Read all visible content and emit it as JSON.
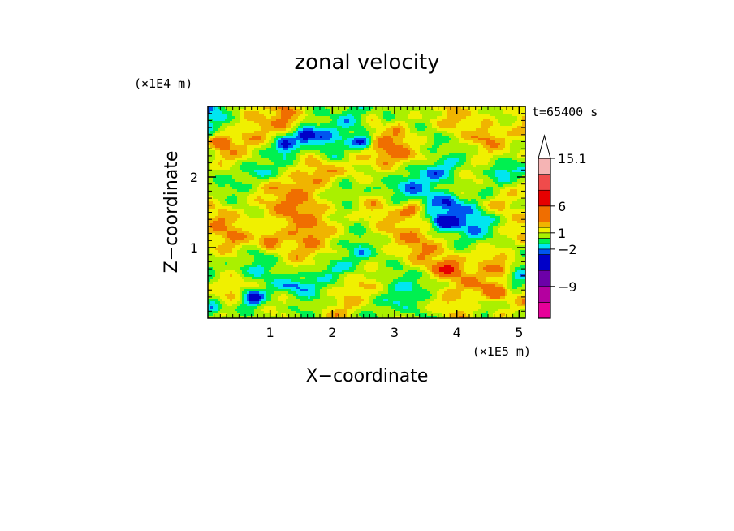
{
  "chart_data": {
    "type": "heatmap",
    "title": "zonal velocity",
    "xlabel": "X−coordinate",
    "ylabel": "Z−coordinate",
    "x_unit": "(×1E5 m)",
    "y_unit": "(×1E4 m)",
    "time_label": "t=65400 s",
    "xlim": [
      0,
      5.1
    ],
    "ylim": [
      0,
      3.0
    ],
    "x_ticks": [
      1,
      2,
      3,
      4,
      5
    ],
    "y_ticks": [
      1,
      2
    ],
    "colorbar": {
      "levels": [
        -15,
        -12,
        -9,
        -6,
        -3,
        -2,
        -1,
        0,
        1,
        2,
        3,
        6,
        9,
        12,
        15.1
      ],
      "labels": [
        "15.1",
        "6",
        "1",
        "−2",
        "−9"
      ],
      "colors": [
        "#e60099",
        "#b4009f",
        "#6c00a8",
        "#0000c8",
        "#0055f0",
        "#00e6f0",
        "#00f050",
        "#aaf000",
        "#f0f000",
        "#f0b400",
        "#f06e00",
        "#e60000",
        "#f04b4b",
        "#f5b4b4"
      ]
    },
    "z_grid": {
      "nx": 26,
      "nz": 14,
      "values": [
        [
          -2.5,
          -1.5,
          0.5,
          1.5,
          1.5,
          2.5,
          3.5,
          1.5,
          0.5,
          0.5,
          0.5,
          -0.5,
          -0.5,
          0.5,
          -0.5,
          0.5,
          0.5,
          0.5,
          1.5,
          2.5,
          1.5,
          1.5,
          1.5,
          0.5,
          0.5,
          1.5
        ],
        [
          -1.5,
          -0.5,
          0.5,
          1.5,
          2.5,
          2.5,
          3.5,
          2.5,
          0.5,
          -0.5,
          -0.5,
          -1.5,
          -0.5,
          1.5,
          0.5,
          1.5,
          0.5,
          0.5,
          1.5,
          2.5,
          2.5,
          1.5,
          1.5,
          0.5,
          1.5,
          2.5
        ],
        [
          -0.5,
          0.5,
          1.5,
          2.5,
          2.5,
          1.5,
          0.5,
          0.5,
          -0.5,
          -2.5,
          -1.5,
          -0.5,
          0.5,
          2.5,
          3.5,
          3.5,
          1.5,
          0.5,
          -0.5,
          0.5,
          1.5,
          2.5,
          3.5,
          2.5,
          1.5,
          1.5
        ],
        [
          0.5,
          2.5,
          2.5,
          1.5,
          0.5,
          -0.5,
          -0.5,
          0.5,
          1.5,
          0.5,
          -0.5,
          0.5,
          1.5,
          2.5,
          3.5,
          3.5,
          2.5,
          1.5,
          0.5,
          -0.5,
          -0.5,
          0.5,
          1.5,
          1.5,
          0.5,
          0.5
        ],
        [
          0.5,
          0.5,
          0.5,
          -0.5,
          -1.5,
          -0.5,
          0.5,
          1.5,
          2.5,
          3.5,
          2.5,
          1.5,
          1.5,
          0.5,
          1.5,
          0.5,
          -0.5,
          -1.5,
          -2.5,
          -1.5,
          0.5,
          1.5,
          0.5,
          -2.5,
          -1.5,
          -0.5
        ],
        [
          0.5,
          -0.5,
          -0.5,
          0.5,
          1.5,
          2.5,
          2.5,
          3.5,
          2.5,
          1.5,
          0.5,
          -0.5,
          0.5,
          0.5,
          -0.5,
          -1.5,
          -2.5,
          -1.5,
          -0.5,
          0.5,
          1.5,
          0.5,
          -0.5,
          0.5,
          1.5,
          1.5
        ],
        [
          1.5,
          1.5,
          0.5,
          0.5,
          1.5,
          2.5,
          3.5,
          3.5,
          2.5,
          1.5,
          0.5,
          0.5,
          1.5,
          2.5,
          1.5,
          0.5,
          -0.5,
          -1.5,
          -2.5,
          -3.5,
          -1.5,
          -0.5,
          1.5,
          2.5,
          1.5,
          0.5
        ],
        [
          2.5,
          3.5,
          2.5,
          1.5,
          0.5,
          1.5,
          2.5,
          3.5,
          3.5,
          2.5,
          1.5,
          0.5,
          0.5,
          1.5,
          2.5,
          2.5,
          1.5,
          0.5,
          -0.5,
          -1.5,
          -2.5,
          -2.5,
          -1.5,
          0.5,
          1.5,
          2.5
        ],
        [
          1.5,
          2.5,
          3.5,
          2.5,
          1.5,
          0.5,
          1.5,
          2.5,
          3.5,
          2.5,
          1.5,
          0.5,
          -0.5,
          0.5,
          1.5,
          2.5,
          3.5,
          2.5,
          1.5,
          0.5,
          -0.5,
          -1.5,
          -0.5,
          0.5,
          1.5,
          2.5
        ],
        [
          0.5,
          1.5,
          1.5,
          0.5,
          -0.5,
          0.5,
          1.5,
          2.5,
          2.5,
          1.5,
          0.5,
          -0.5,
          -1.5,
          -0.5,
          0.5,
          1.5,
          2.5,
          3.5,
          2.5,
          1.5,
          0.5,
          1.5,
          2.5,
          1.5,
          0.5,
          -0.5
        ],
        [
          -0.5,
          0.5,
          0.5,
          -0.5,
          -1.5,
          -0.5,
          0.5,
          1.5,
          0.5,
          -0.5,
          -1.5,
          -0.5,
          0.5,
          1.5,
          0.5,
          -0.5,
          0.5,
          1.5,
          2.5,
          3.5,
          2.5,
          1.5,
          2.5,
          3.5,
          2.5,
          0.5
        ],
        [
          0.5,
          1.5,
          2.5,
          1.5,
          0.5,
          -0.5,
          -1.5,
          -2.5,
          -1.5,
          -0.5,
          0.5,
          1.5,
          2.5,
          1.5,
          0.5,
          -0.5,
          -1.5,
          -0.5,
          0.5,
          1.5,
          2.5,
          3.5,
          2.5,
          1.5,
          0.5,
          1.5
        ],
        [
          1.5,
          2.5,
          1.5,
          0.5,
          -0.5,
          0.5,
          1.5,
          0.5,
          -0.5,
          0.5,
          1.5,
          2.5,
          1.5,
          0.5,
          -0.5,
          -1.5,
          -0.5,
          0.5,
          1.5,
          2.5,
          1.5,
          0.5,
          -0.5,
          0.5,
          1.5,
          2.5
        ],
        [
          0.5,
          1.5,
          0.5,
          -0.5,
          0.5,
          1.5,
          0.5,
          -0.5,
          0.5,
          1.5,
          2.5,
          1.5,
          0.5,
          -0.5,
          0.5,
          1.5,
          0.5,
          -0.5,
          0.5,
          1.5,
          2.5,
          1.5,
          0.5,
          1.5,
          0.5,
          0.5
        ]
      ]
    },
    "features": [
      {
        "x": 1.55,
        "z": 2.6,
        "value": -5
      },
      {
        "x": 2.5,
        "z": 2.5,
        "value": -4
      },
      {
        "x": 1.25,
        "z": 2.45,
        "value": -4
      },
      {
        "x": 3.8,
        "z": 1.35,
        "value": -4
      },
      {
        "x": 0.1,
        "z": 0.15,
        "value": -4
      },
      {
        "x": 0.7,
        "z": 0.3,
        "value": -4
      },
      {
        "x": 5.0,
        "z": 0.6,
        "value": -4
      },
      {
        "x": 3.3,
        "z": 1.55,
        "value": 4
      },
      {
        "x": 3.85,
        "z": 0.7,
        "value": 4
      },
      {
        "x": 0.2,
        "z": 2.5,
        "value": 4
      },
      {
        "x": 4.6,
        "z": 0.35,
        "value": 4
      },
      {
        "x": 1.0,
        "z": 1.1,
        "value": 3.5
      }
    ]
  }
}
